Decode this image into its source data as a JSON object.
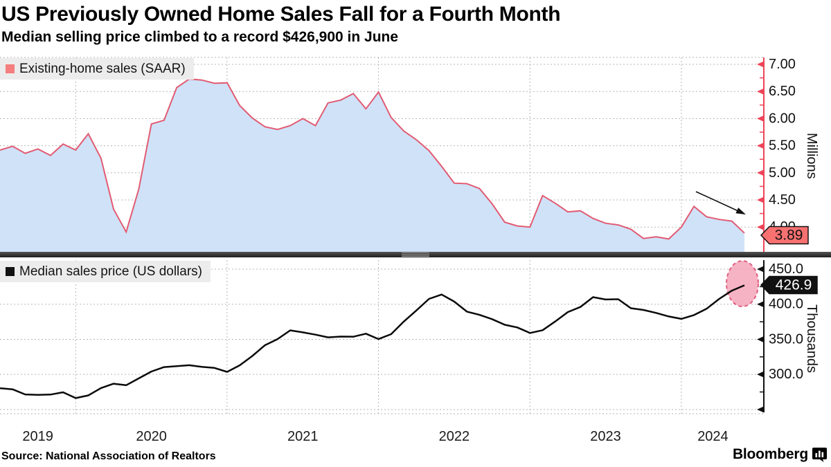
{
  "header": {
    "title": "US Previously Owned Home Sales Fall for a Fourth Month",
    "subtitle": "Median selling price climbed to a record $426,900 in June"
  },
  "source_line": "Source: National Association of Realtors",
  "branding": {
    "logo_text": "Bloomberg",
    "logo_icon": "bloomberg-terminal-icon"
  },
  "panels": {
    "top": {
      "legend": "Existing-home sales (SAAR)",
      "unit": "Millions",
      "last_value": "3.89"
    },
    "bottom": {
      "legend": "Median sales price (US dollars)",
      "unit": "Thousands",
      "last_value": "426.9"
    }
  },
  "x_year_labels": [
    "2019",
    "2020",
    "2021",
    "2022",
    "2023",
    "2024"
  ],
  "chart_data": [
    {
      "type": "area",
      "panel": "top",
      "title": "Existing-home sales (SAAR)",
      "ylabel": "Millions",
      "frequency": "monthly",
      "x_start": "2019-07",
      "x_end": "2024-06",
      "x_tick_labels": [
        "2019",
        "2020",
        "2021",
        "2022",
        "2023",
        "2024"
      ],
      "y_ticks": [
        7.0,
        6.5,
        6.0,
        5.5,
        5.0,
        4.5,
        4.0
      ],
      "y_minor_tick_step": 0.25,
      "ylim": [
        3.55,
        7.1
      ],
      "grid": true,
      "legend_position": "top-left",
      "last_value_label": "3.89",
      "annotation": "black arrow pointing down-right at latest decline",
      "values": [
        5.42,
        5.49,
        5.36,
        5.44,
        5.32,
        5.53,
        5.42,
        5.72,
        5.27,
        4.33,
        3.91,
        4.7,
        5.9,
        5.97,
        6.57,
        6.73,
        6.71,
        6.65,
        6.66,
        6.24,
        6.01,
        5.85,
        5.8,
        5.87,
        6.0,
        5.87,
        6.29,
        6.34,
        6.46,
        6.18,
        6.49,
        6.02,
        5.77,
        5.61,
        5.41,
        5.12,
        4.81,
        4.8,
        4.71,
        4.43,
        4.09,
        4.02,
        4.0,
        4.58,
        4.44,
        4.28,
        4.3,
        4.16,
        4.07,
        4.04,
        3.96,
        3.79,
        3.82,
        3.78,
        4.0,
        4.38,
        4.19,
        4.14,
        4.11,
        3.89
      ],
      "colors": {
        "line": "#e25b72",
        "fill": "#cfe2f8",
        "axis": "#ee4458",
        "callout_fill": "#f87171",
        "callout_text": "#111111",
        "legend_swatch": "#f57e7e"
      }
    },
    {
      "type": "line",
      "panel": "bottom",
      "title": "Median sales price (US dollars)",
      "ylabel": "Thousands",
      "frequency": "monthly",
      "x_start": "2019-07",
      "x_end": "2024-06",
      "x_tick_labels": [
        "2019",
        "2020",
        "2021",
        "2022",
        "2023",
        "2024"
      ],
      "y_ticks": [
        450.0,
        400.0,
        350.0,
        300.0
      ],
      "y_minor_tick_step": 25,
      "ylim": [
        245,
        463
      ],
      "grid": true,
      "legend_position": "top-left",
      "last_value_label": "426.9",
      "annotation": "pink dashed ellipse highlighting record June value",
      "values": [
        280.4,
        278.8,
        271.5,
        270.9,
        271.3,
        274.5,
        266.3,
        270.1,
        280.6,
        286.8,
        284.6,
        294.4,
        304.1,
        310.4,
        311.8,
        313.1,
        310.8,
        309.2,
        303.6,
        313.0,
        326.3,
        341.6,
        350.3,
        362.8,
        359.9,
        356.7,
        352.8,
        353.9,
        353.7,
        358.0,
        350.3,
        357.3,
        375.3,
        391.2,
        407.6,
        413.8,
        403.8,
        389.5,
        384.8,
        378.7,
        370.7,
        366.9,
        359.0,
        363.0,
        375.4,
        388.8,
        396.1,
        410.1,
        406.7,
        407.1,
        394.3,
        391.8,
        387.6,
        382.6,
        379.1,
        384.5,
        393.5,
        407.6,
        419.3,
        426.9
      ],
      "colors": {
        "line": "#0a0a0a",
        "axis": "#111111",
        "callout_fill": "#111111",
        "callout_text": "#ffffff",
        "legend_swatch": "#111111",
        "highlight_fill": "#f4a0b4",
        "highlight_stroke": "#e05e80"
      }
    }
  ],
  "grid_color": "#b5b5b5"
}
